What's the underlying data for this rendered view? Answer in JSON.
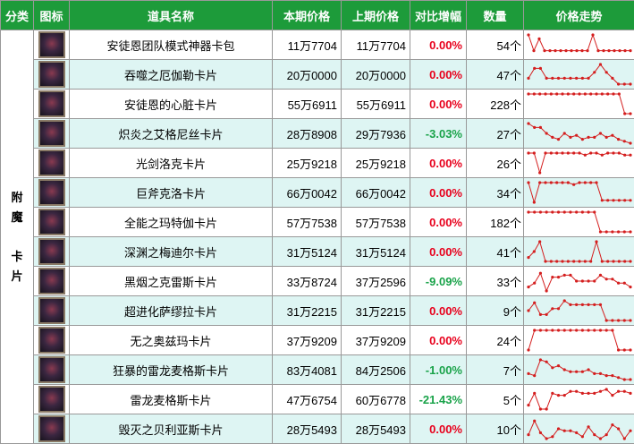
{
  "header": [
    "分类",
    "图标",
    "道具名称",
    "本期价格",
    "上期价格",
    "对比增幅",
    "数量",
    "价格走势"
  ],
  "category": [
    "附魔",
    "卡片"
  ],
  "rows": [
    {
      "name": "安徒恩团队模式神器卡包",
      "current": "11万7704",
      "previous": "11万7704",
      "change": "0.00%",
      "count": "54个",
      "trend": [
        10,
        2,
        8,
        2,
        2,
        2,
        2,
        2,
        2,
        2,
        2,
        2,
        10,
        2,
        2,
        2,
        2,
        2,
        2,
        2
      ]
    },
    {
      "name": "吞噬之厄伽勒卡片",
      "current": "20万0000",
      "previous": "20万0000",
      "change": "0.00%",
      "count": "47个",
      "trend": [
        3,
        8,
        8,
        3,
        3,
        3,
        3,
        3,
        3,
        3,
        3,
        6,
        10,
        6,
        3,
        0,
        0,
        0
      ]
    },
    {
      "name": "安徒恩的心脏卡片",
      "current": "55万6911",
      "previous": "55万6911",
      "change": "0.00%",
      "count": "228个",
      "trend": [
        10,
        10,
        10,
        10,
        10,
        10,
        10,
        10,
        10,
        10,
        10,
        10,
        10,
        10,
        10,
        10,
        10,
        0,
        0
      ]
    },
    {
      "name": "炽炎之艾格尼丝卡片",
      "current": "28万8908",
      "previous": "29万7936",
      "change": "-3.03%",
      "count": "27个",
      "trend": [
        10,
        8,
        8,
        5,
        3,
        2,
        5,
        3,
        4,
        2,
        3,
        3,
        5,
        3,
        4,
        2,
        1,
        0
      ]
    },
    {
      "name": "光剑洛克卡片",
      "current": "25万9218",
      "previous": "25万9218",
      "change": "0.00%",
      "count": "26个",
      "trend": [
        10,
        10,
        0,
        10,
        10,
        10,
        10,
        10,
        10,
        10,
        9,
        10,
        10,
        9,
        10,
        10,
        10,
        9,
        9
      ]
    },
    {
      "name": "巨斧克洛卡片",
      "current": "66万0042",
      "previous": "66万0042",
      "change": "0.00%",
      "count": "34个",
      "trend": [
        10,
        0,
        10,
        10,
        10,
        10,
        10,
        10,
        9,
        10,
        10,
        10,
        10,
        1,
        1,
        1,
        1,
        1,
        1
      ]
    },
    {
      "name": "全能之玛特伽卡片",
      "current": "57万7538",
      "previous": "57万7538",
      "change": "0.00%",
      "count": "182个",
      "trend": [
        10,
        10,
        10,
        10,
        10,
        10,
        10,
        10,
        10,
        10,
        10,
        10,
        0,
        0,
        0,
        0,
        0,
        0
      ]
    },
    {
      "name": "深渊之梅迪尔卡片",
      "current": "31万5124",
      "previous": "31万5124",
      "change": "0.00%",
      "count": "41个",
      "trend": [
        2,
        5,
        10,
        0,
        0,
        0,
        0,
        0,
        0,
        0,
        0,
        0,
        10,
        0,
        0,
        0,
        0,
        0,
        0
      ]
    },
    {
      "name": "黑烟之克雷斯卡片",
      "current": "33万8724",
      "previous": "37万2596",
      "change": "-9.09%",
      "count": "33个",
      "trend": [
        2,
        4,
        9,
        0,
        7,
        7,
        8,
        8,
        5,
        5,
        5,
        5,
        8,
        6,
        6,
        4,
        4,
        2
      ]
    },
    {
      "name": "超进化萨缪拉卡片",
      "current": "31万2215",
      "previous": "31万2215",
      "change": "0.00%",
      "count": "9个",
      "trend": [
        5,
        9,
        3,
        3,
        6,
        6,
        10,
        8,
        8,
        8,
        8,
        8,
        8,
        0,
        0,
        0,
        0,
        0
      ]
    },
    {
      "name": "无之奥兹玛卡片",
      "current": "37万9209",
      "previous": "37万9209",
      "change": "0.00%",
      "count": "24个",
      "trend": [
        0,
        10,
        10,
        10,
        10,
        10,
        10,
        10,
        10,
        10,
        10,
        10,
        10,
        10,
        10,
        0,
        0,
        0
      ]
    },
    {
      "name": "狂暴的雷龙麦格斯卡片",
      "current": "83万4081",
      "previous": "84万2506",
      "change": "-1.00%",
      "count": "7个",
      "trend": [
        3,
        2,
        10,
        9,
        6,
        7,
        5,
        4,
        4,
        4,
        5,
        3,
        3,
        2,
        2,
        1,
        0,
        0
      ]
    },
    {
      "name": "雷龙麦格斯卡片",
      "current": "47万6754",
      "previous": "60万6778",
      "change": "-21.43%",
      "count": "5个",
      "trend": [
        2,
        8,
        0,
        0,
        8,
        7,
        7,
        9,
        9,
        8,
        8,
        8,
        9,
        10,
        7,
        9,
        9,
        8
      ]
    },
    {
      "name": "毁灭之贝利亚斯卡片",
      "current": "28万5493",
      "previous": "28万5493",
      "change": "0.00%",
      "count": "10个",
      "trend": [
        2,
        9,
        3,
        0,
        1,
        5,
        4,
        4,
        3,
        1,
        6,
        2,
        0,
        2,
        7,
        5,
        0,
        4
      ]
    }
  ]
}
